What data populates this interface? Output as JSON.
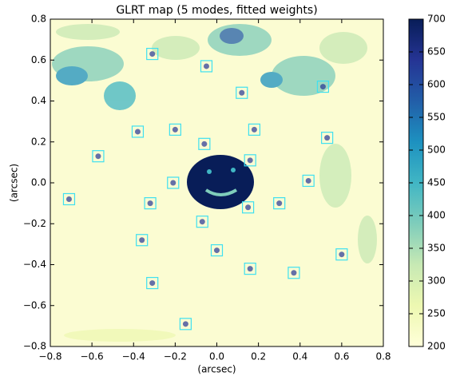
{
  "chart_data": {
    "type": "image",
    "title": "GLRT map (5 modes, fitted weights)",
    "x_label": "(arcsec)",
    "y_label": "(arcsec)",
    "xlim": [
      -0.8,
      0.8
    ],
    "ylim": [
      -0.8,
      0.8
    ],
    "xticks": [
      {
        "value": -0.8,
        "label": "−0.8"
      },
      {
        "value": -0.6,
        "label": "−0.6"
      },
      {
        "value": -0.4,
        "label": "−0.4"
      },
      {
        "value": -0.2,
        "label": "−0.2"
      },
      {
        "value": 0,
        "label": "0.0"
      },
      0.2,
      0.4,
      0.6,
      0.8
    ],
    "yticks": [
      {
        "value": -0.8,
        "label": "−0.8"
      },
      {
        "value": -0.6,
        "label": "−0.6"
      },
      {
        "value": -0.4,
        "label": "−0.4"
      },
      {
        "value": -0.2,
        "label": "−0.2"
      },
      {
        "value": 0,
        "label": "0.0"
      },
      0.2,
      0.4,
      0.6,
      0.8
    ],
    "clim": [
      200,
      700
    ],
    "cticks": [
      200,
      250,
      300,
      350,
      400,
      450,
      500,
      550,
      600,
      650,
      700
    ],
    "colormap": [
      "#ffffd9",
      "#edf8b1",
      "#c7e9b4",
      "#7fcdbb",
      "#41b6c4",
      "#1d91c0",
      "#225ea8",
      "#253494",
      "#081d58"
    ],
    "box_color": "#3fe0f0",
    "detections": {
      "x": [
        -0.31,
        -0.05,
        0.12,
        0.51,
        -0.38,
        -0.2,
        -0.06,
        0.18,
        0.53,
        -0.57,
        0.16,
        0.44,
        -0.21,
        -0.71,
        -0.32,
        0.15,
        0.3,
        -0.07,
        -0.36,
        0.0,
        0.6,
        0.16,
        0.37,
        -0.31,
        -0.15
      ],
      "y": [
        0.63,
        0.57,
        0.44,
        0.47,
        0.25,
        0.26,
        0.19,
        0.26,
        0.22,
        0.13,
        0.11,
        0.01,
        0.0,
        -0.08,
        -0.1,
        -0.12,
        -0.1,
        -0.19,
        -0.28,
        -0.33,
        -0.35,
        -0.42,
        -0.44,
        -0.49,
        -0.69
      ]
    }
  }
}
